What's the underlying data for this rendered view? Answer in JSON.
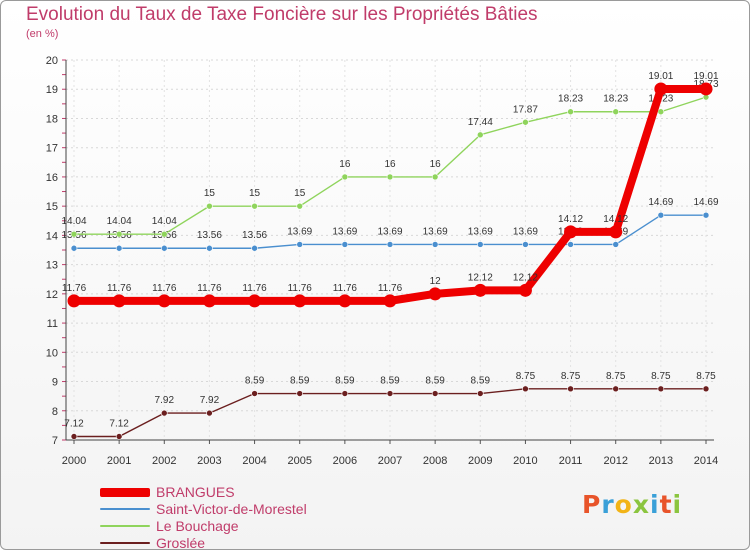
{
  "header": {
    "title": "Evolution du Taux de Taxe Foncière sur les Propriétés Bâties",
    "unit": "(en %)"
  },
  "logo": {
    "letters": [
      "P",
      "r",
      "o",
      "x",
      "i",
      "t",
      "i"
    ],
    "colors": [
      "#e8542a",
      "#3aa0d8",
      "#f2b417",
      "#8bc53f",
      "#3aa0d8",
      "#e8542a",
      "#8bc53f"
    ]
  },
  "chart_data": {
    "type": "line",
    "title": "Evolution du Taux de Taxe Foncière sur les Propriétés Bâties",
    "ylabel": "(en %)",
    "xlabel": "",
    "x": [
      2000,
      2001,
      2002,
      2003,
      2004,
      2005,
      2006,
      2007,
      2008,
      2009,
      2010,
      2011,
      2012,
      2013,
      2014
    ],
    "ylim": [
      7,
      20
    ],
    "yticks": [
      7,
      8,
      9,
      10,
      11,
      12,
      13,
      14,
      15,
      16,
      17,
      18,
      19,
      20
    ],
    "grid": true,
    "series": [
      {
        "name": "BRANGUES",
        "color": "#ee0000",
        "emphasis": true,
        "values": [
          11.76,
          11.76,
          11.76,
          11.76,
          11.76,
          11.76,
          11.76,
          11.76,
          12,
          12.12,
          12.12,
          14.12,
          14.12,
          19.01,
          19.01
        ],
        "labels": [
          "11.76",
          "11.76",
          "11.76",
          "11.76",
          "11.76",
          "11.76",
          "11.76",
          "11.76",
          "12",
          "12.12",
          "12.12",
          "14.12",
          "14.12",
          "19.01",
          "19.01"
        ]
      },
      {
        "name": "Saint-Victor-de-Morestel",
        "color": "#4a8fcf",
        "values": [
          13.56,
          13.56,
          13.56,
          13.56,
          13.56,
          13.69,
          13.69,
          13.69,
          13.69,
          13.69,
          13.69,
          13.69,
          13.69,
          14.69,
          14.69
        ],
        "labels": [
          "13.56",
          "13.56",
          "13.56",
          "13.56",
          "13.56",
          "13.69",
          "13.69",
          "13.69",
          "13.69",
          "13.69",
          "13.69",
          "13.69",
          "13.69",
          "14.69",
          "14.69"
        ]
      },
      {
        "name": "Le Bouchage",
        "color": "#8fd45c",
        "values": [
          14.04,
          14.04,
          14.04,
          15,
          15,
          15,
          16,
          16,
          16,
          17.44,
          17.87,
          18.23,
          18.23,
          18.23,
          18.73
        ],
        "labels": [
          "14.04",
          "14.04",
          "14.04",
          "15",
          "15",
          "15",
          "16",
          "16",
          "16",
          "17.44",
          "17.87",
          "18.23",
          "18.23",
          "18.23",
          "18.73"
        ]
      },
      {
        "name": "Groslée",
        "color": "#6b1f1f",
        "values": [
          7.12,
          7.12,
          7.92,
          7.92,
          8.59,
          8.59,
          8.59,
          8.59,
          8.59,
          8.59,
          8.75,
          8.75,
          8.75,
          8.75,
          8.75
        ],
        "labels": [
          "7.12",
          "7.12",
          "7.92",
          "7.92",
          "8.59",
          "8.59",
          "8.59",
          "8.59",
          "8.59",
          "8.59",
          "8.75",
          "8.75",
          "8.75",
          "8.75",
          "8.75"
        ]
      }
    ]
  }
}
